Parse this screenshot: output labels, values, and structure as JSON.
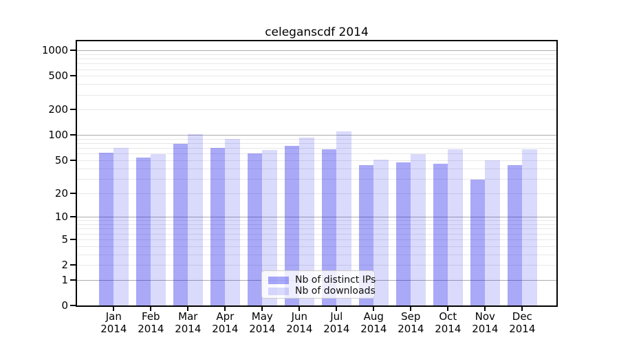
{
  "title": "celeganscdf 2014",
  "legend": {
    "items": [
      {
        "label": "Nb of distinct IPs",
        "color": "rgba(10,10,235,0.35)"
      },
      {
        "label": "Nb of downloads",
        "color": "rgba(10,10,235,0.15)"
      }
    ]
  },
  "axes": {
    "y_tick_values": [
      0,
      1,
      2,
      5,
      10,
      20,
      50,
      100,
      200,
      500,
      1000
    ],
    "x_months": [
      "Jan",
      "Feb",
      "Mar",
      "Apr",
      "May",
      "Jun",
      "Jul",
      "Aug",
      "Sep",
      "Oct",
      "Nov",
      "Dec"
    ],
    "x_year": "2014"
  },
  "colors": {
    "bar_dark": "rgba(10,10,235,0.35)",
    "bar_light": "rgba(10,10,235,0.15)",
    "grid_major": "#ababab",
    "grid_minor": "#e8e8e8",
    "axis": "#000000",
    "legend_bg": "rgba(255,255,255,0.8)"
  },
  "chart_data": {
    "type": "bar",
    "title": "celeganscdf 2014",
    "categories": [
      "Jan 2014",
      "Feb 2014",
      "Mar 2014",
      "Apr 2014",
      "May 2014",
      "Jun 2014",
      "Jul 2014",
      "Aug 2014",
      "Sep 2014",
      "Oct 2014",
      "Nov 2014",
      "Dec 2014"
    ],
    "series": [
      {
        "name": "Nb of distinct IPs",
        "values": [
          61,
          54,
          78,
          70,
          60,
          75,
          68,
          44,
          47,
          45,
          29,
          44
        ]
      },
      {
        "name": "Nb of downloads",
        "values": [
          70,
          59,
          103,
          90,
          67,
          94,
          110,
          51,
          59,
          68,
          50,
          68
        ]
      }
    ],
    "xlabel": "",
    "ylabel": "",
    "yscale": "log1p",
    "ylim": [
      0,
      1276
    ],
    "y_ticks": [
      0,
      1,
      2,
      5,
      10,
      20,
      50,
      100,
      200,
      500,
      1000
    ],
    "grid": "on",
    "legend_position": "lower-center"
  }
}
